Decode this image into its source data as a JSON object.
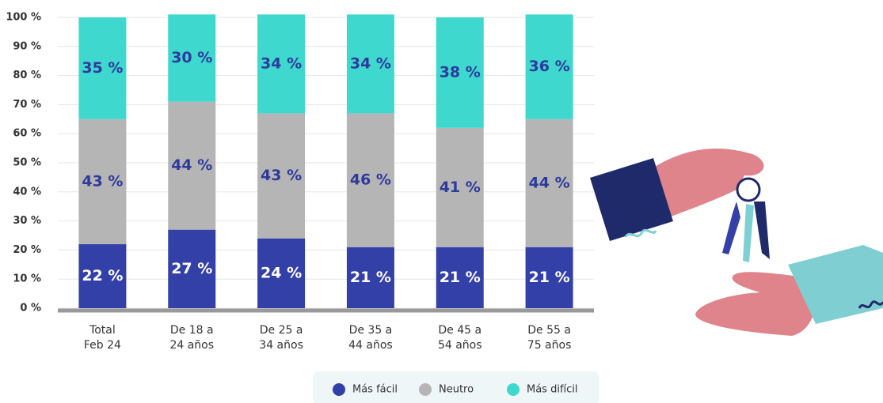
{
  "chart_data": {
    "type": "stacked-bar",
    "categories": [
      "Total\nFeb 24",
      "De 18 a\n24 años",
      "De 25 a\n34 años",
      "De 35 a\n44 años",
      "De 45 a\n54 años",
      "De 55 a\n75 años"
    ],
    "series": [
      {
        "name": "Más fácil",
        "color": "#3340a8",
        "values": [
          22,
          27,
          24,
          21,
          21,
          21
        ],
        "value_labels": [
          "22 %",
          "27 %",
          "24 %",
          "21 %",
          "21 %",
          "21 %"
        ]
      },
      {
        "name": "Neutro",
        "color": "#b5b5b5",
        "values": [
          43,
          44,
          43,
          46,
          41,
          44
        ],
        "value_labels": [
          "43 %",
          "44 %",
          "43 %",
          "46 %",
          "41 %",
          "44 %"
        ]
      },
      {
        "name": "Más difícil",
        "color": "#3ed8cf",
        "values": [
          35,
          30,
          34,
          34,
          38,
          36
        ],
        "value_labels": [
          "35 %",
          "30 %",
          "34 %",
          "34 %",
          "38 %",
          "36 %"
        ]
      }
    ],
    "ylim": [
      0,
      100
    ],
    "yticks": [
      {
        "value": 0,
        "label": "0 %"
      },
      {
        "value": 10,
        "label": "10 %"
      },
      {
        "value": 20,
        "label": "20 %"
      },
      {
        "value": 30,
        "label": "30 %"
      },
      {
        "value": 40,
        "label": "40 %"
      },
      {
        "value": 50,
        "label": "50 %"
      },
      {
        "value": 60,
        "label": "60 %"
      },
      {
        "value": 70,
        "label": "70 %"
      },
      {
        "value": 80,
        "label": "80 %"
      },
      {
        "value": 90,
        "label": "90 %"
      },
      {
        "value": 100,
        "label": "100 %"
      }
    ],
    "grid": true
  }
}
